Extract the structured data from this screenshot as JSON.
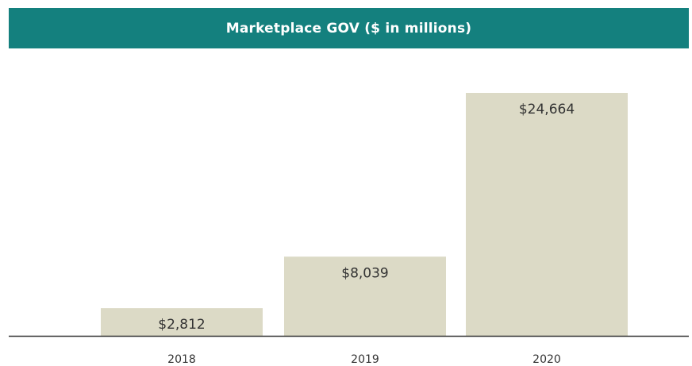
{
  "colors": {
    "banner": "#14807e",
    "bar": "#dcdac6",
    "axis": "#333333",
    "text": "#333333"
  },
  "chart_data": {
    "type": "bar",
    "title": "Marketplace GOV ($ in millions)",
    "categories": [
      "2018",
      "2019",
      "2020"
    ],
    "values": [
      2812,
      8039,
      24664
    ],
    "data_labels": [
      "$2,812",
      "$8,039",
      "$24,664"
    ],
    "xlabel": "",
    "ylabel": "",
    "ylim": [
      0,
      24664
    ],
    "grid": false,
    "legend": "none"
  }
}
